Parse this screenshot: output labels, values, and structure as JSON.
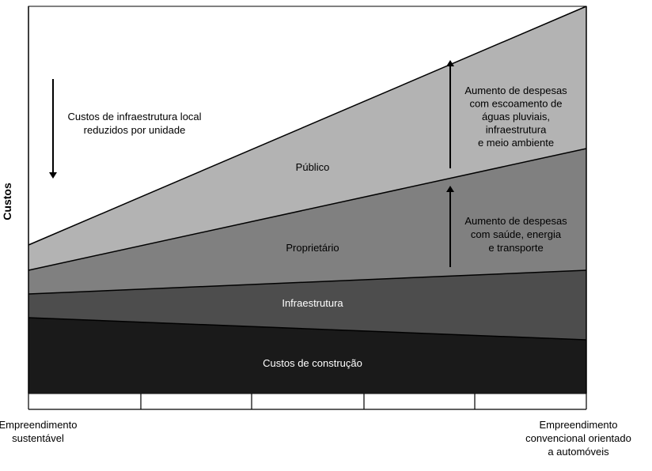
{
  "y_axis_label": "Custos",
  "x_axis": {
    "left": [
      "Empreendimento",
      "sustentável"
    ],
    "right": [
      "Empreendimento",
      "convencional orientado",
      "a automóveis"
    ]
  },
  "layers": {
    "public": "Público",
    "owner": "Proprietário",
    "infrastructure": "Infraestrutura",
    "construction": "Custos de construção"
  },
  "annotations": {
    "reduced": [
      "Custos de infraestrutura local",
      "reduzidos por unidade"
    ],
    "public_increase": [
      "Aumento de despesas",
      "com escoamento de",
      "águas pluviais,",
      "infraestrutura",
      "e meio ambiente"
    ],
    "owner_increase": [
      "Aumento de despesas",
      "com saúde, energia",
      "e transporte"
    ]
  }
}
